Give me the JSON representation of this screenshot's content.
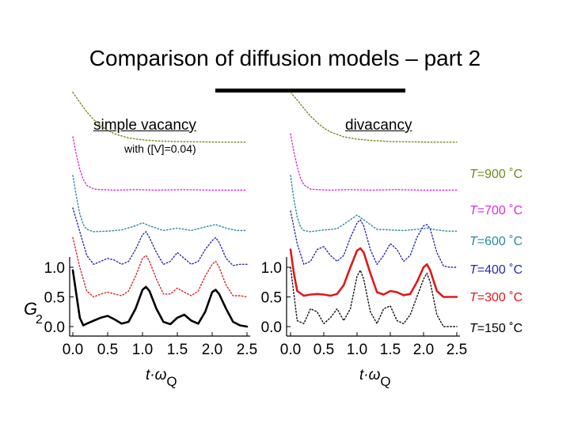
{
  "slide": {
    "title": "Comparison of diffusion models – part 2"
  },
  "chart_data": [
    {
      "type": "line",
      "panel": "left",
      "title": "simple vacancy",
      "subtitle": "with ([V]=0.04)",
      "xlabel": "t·ωQ",
      "ylabel": "G2",
      "xlim": [
        0.0,
        2.5
      ],
      "ylim": [
        0.0,
        1.0
      ],
      "x_ticks": [
        "0.0",
        "0.5",
        "1.0",
        "1.5",
        "2.0",
        "2.5"
      ],
      "y_ticks": [
        "0.0",
        "0.5",
        "1.0"
      ],
      "grid": false,
      "series": [
        {
          "name": "T=900 ˚C",
          "color": "#6e8b1e",
          "style": "dotted",
          "offset": 3.1,
          "x": [
            0.0,
            0.1,
            0.2,
            0.3,
            0.4,
            0.5,
            0.6,
            0.8,
            1.0,
            1.2,
            1.5,
            1.8,
            2.1,
            2.5
          ],
          "y": [
            0.85,
            0.68,
            0.52,
            0.39,
            0.29,
            0.21,
            0.15,
            0.08,
            0.05,
            0.03,
            0.02,
            0.015,
            0.01,
            0.01
          ]
        },
        {
          "name": "T=700 ˚C",
          "color": "#d92fd9",
          "style": "dotted",
          "offset": 2.3,
          "x": [
            0.0,
            0.05,
            0.1,
            0.15,
            0.2,
            0.3,
            0.4,
            0.6,
            0.9,
            1.2,
            1.6,
            2.0,
            2.5
          ],
          "y": [
            0.9,
            0.6,
            0.35,
            0.18,
            0.08,
            0.02,
            0.01,
            0.0,
            0.01,
            0.0,
            0.01,
            0.0,
            0.0
          ]
        },
        {
          "name": "T=600 ˚C",
          "color": "#2b8a9e",
          "style": "dotted",
          "offset": 1.6,
          "x": [
            0.0,
            0.05,
            0.1,
            0.15,
            0.2,
            0.3,
            0.5,
            0.7,
            0.9,
            1.0,
            1.1,
            1.3,
            1.5,
            1.7,
            1.9,
            2.05,
            2.2,
            2.35,
            2.5
          ],
          "y": [
            0.95,
            0.6,
            0.3,
            0.12,
            0.04,
            0.0,
            0.01,
            0.03,
            0.1,
            0.15,
            0.1,
            0.02,
            0.06,
            0.02,
            0.08,
            0.12,
            0.06,
            0.02,
            0.02
          ]
        },
        {
          "name": "T=400 ˚C",
          "color": "#2a2ab0",
          "style": "dotted",
          "offset": 1.0,
          "x": [
            0.0,
            0.1,
            0.2,
            0.3,
            0.4,
            0.5,
            0.6,
            0.7,
            0.8,
            0.9,
            1.0,
            1.05,
            1.1,
            1.2,
            1.3,
            1.4,
            1.5,
            1.6,
            1.7,
            1.8,
            1.9,
            2.0,
            2.05,
            2.1,
            2.2,
            2.3,
            2.4,
            2.5
          ],
          "y": [
            1.0,
            0.6,
            0.2,
            0.05,
            0.1,
            0.15,
            0.12,
            0.05,
            0.1,
            0.3,
            0.55,
            0.6,
            0.5,
            0.25,
            0.05,
            0.1,
            0.25,
            0.15,
            0.05,
            0.1,
            0.3,
            0.45,
            0.5,
            0.42,
            0.15,
            0.03,
            0.05,
            0.05
          ]
        },
        {
          "name": "T=300 ˚C",
          "color": "#d92424",
          "style": "dotted",
          "offset": 0.5,
          "x": [
            0.0,
            0.1,
            0.2,
            0.3,
            0.4,
            0.5,
            0.6,
            0.7,
            0.8,
            0.9,
            1.0,
            1.05,
            1.1,
            1.2,
            1.3,
            1.4,
            1.5,
            1.6,
            1.7,
            1.8,
            1.9,
            2.0,
            2.05,
            2.1,
            2.2,
            2.3,
            2.4,
            2.5
          ],
          "y": [
            1.0,
            0.5,
            0.1,
            0.0,
            0.05,
            0.08,
            0.05,
            0.02,
            0.1,
            0.35,
            0.65,
            0.7,
            0.6,
            0.3,
            0.05,
            0.05,
            0.15,
            0.08,
            0.02,
            0.1,
            0.35,
            0.55,
            0.6,
            0.5,
            0.2,
            0.02,
            0.02,
            0.0
          ]
        },
        {
          "name": "T=150 ˚C",
          "color": "#000000",
          "style": "solid",
          "offset": 0.0,
          "x": [
            0.0,
            0.05,
            0.1,
            0.15,
            0.2,
            0.3,
            0.4,
            0.5,
            0.6,
            0.7,
            0.8,
            0.9,
            1.0,
            1.05,
            1.1,
            1.2,
            1.3,
            1.4,
            1.5,
            1.6,
            1.7,
            1.8,
            1.9,
            2.0,
            2.05,
            2.1,
            2.2,
            2.3,
            2.4,
            2.5
          ],
          "y": [
            0.95,
            0.55,
            0.15,
            0.02,
            0.05,
            0.1,
            0.15,
            0.18,
            0.12,
            0.05,
            0.08,
            0.3,
            0.62,
            0.67,
            0.6,
            0.3,
            0.08,
            0.04,
            0.15,
            0.2,
            0.1,
            0.05,
            0.25,
            0.58,
            0.62,
            0.55,
            0.3,
            0.08,
            0.02,
            0.0
          ]
        }
      ]
    },
    {
      "type": "line",
      "panel": "right",
      "title": "divacancy",
      "xlabel": "t·ωQ",
      "xlim": [
        0.0,
        2.5
      ],
      "ylim": [
        0.0,
        1.0
      ],
      "x_ticks": [
        "0.0",
        "0.5",
        "1.0",
        "1.5",
        "2.0",
        "2.5"
      ],
      "y_ticks": [
        "0.0",
        "0.5",
        "1.0"
      ],
      "grid": false,
      "series": [
        {
          "name": "T=900 ˚C",
          "color": "#6e8b1e",
          "style": "dotted",
          "offset": 3.1,
          "x": [
            0.0,
            0.1,
            0.2,
            0.3,
            0.4,
            0.5,
            0.6,
            0.8,
            1.0,
            1.2,
            1.5,
            1.8,
            2.1,
            2.5
          ],
          "y": [
            0.85,
            0.72,
            0.58,
            0.45,
            0.34,
            0.25,
            0.18,
            0.1,
            0.06,
            0.04,
            0.02,
            0.015,
            0.01,
            0.01
          ]
        },
        {
          "name": "T=700 ˚C",
          "color": "#d92fd9",
          "style": "dotted",
          "offset": 2.3,
          "x": [
            0.0,
            0.05,
            0.1,
            0.15,
            0.2,
            0.3,
            0.4,
            0.6,
            0.9,
            1.2,
            1.6,
            2.0,
            2.5
          ],
          "y": [
            0.95,
            0.65,
            0.4,
            0.2,
            0.09,
            0.02,
            0.01,
            0.0,
            0.01,
            0.0,
            0.01,
            0.0,
            0.0
          ]
        },
        {
          "name": "T=600 ˚C",
          "color": "#2b8a9e",
          "style": "dotted",
          "offset": 1.6,
          "x": [
            0.0,
            0.05,
            0.1,
            0.15,
            0.2,
            0.3,
            0.5,
            0.7,
            0.9,
            1.0,
            1.1,
            1.3,
            1.5,
            1.7,
            1.9,
            2.05,
            2.2,
            2.35,
            2.5
          ],
          "y": [
            0.95,
            0.55,
            0.25,
            0.08,
            0.02,
            0.0,
            0.03,
            0.05,
            0.2,
            0.28,
            0.2,
            0.04,
            0.03,
            0.02,
            0.04,
            0.06,
            0.03,
            0.01,
            0.01
          ]
        },
        {
          "name": "T=400 ˚C",
          "color": "#2a2ab0",
          "style": "dotted",
          "offset": 1.0,
          "x": [
            0.0,
            0.1,
            0.2,
            0.3,
            0.4,
            0.5,
            0.6,
            0.7,
            0.8,
            0.9,
            1.0,
            1.05,
            1.1,
            1.2,
            1.3,
            1.4,
            1.5,
            1.6,
            1.7,
            1.8,
            1.9,
            2.0,
            2.05,
            2.1,
            2.2,
            2.3,
            2.4,
            2.5
          ],
          "y": [
            0.95,
            0.4,
            0.05,
            0.1,
            0.3,
            0.35,
            0.2,
            0.1,
            0.2,
            0.5,
            0.75,
            0.8,
            0.7,
            0.3,
            0.05,
            0.2,
            0.4,
            0.3,
            0.1,
            0.2,
            0.5,
            0.7,
            0.72,
            0.65,
            0.25,
            0.02,
            0.0,
            0.0
          ]
        },
        {
          "name": "T=300 ˚C",
          "color": "#dd1a1a",
          "style": "solid",
          "offset": 0.5,
          "x": [
            0.0,
            0.05,
            0.1,
            0.2,
            0.3,
            0.4,
            0.5,
            0.6,
            0.7,
            0.8,
            0.9,
            1.0,
            1.05,
            1.1,
            1.2,
            1.3,
            1.4,
            1.5,
            1.6,
            1.7,
            1.8,
            1.9,
            2.0,
            2.05,
            2.1,
            2.2,
            2.3,
            2.4,
            2.5
          ],
          "y": [
            0.8,
            0.4,
            0.1,
            0.02,
            0.04,
            0.05,
            0.04,
            0.02,
            0.05,
            0.2,
            0.5,
            0.78,
            0.82,
            0.75,
            0.4,
            0.08,
            0.04,
            0.1,
            0.08,
            0.03,
            0.05,
            0.25,
            0.5,
            0.55,
            0.45,
            0.1,
            0.0,
            0.0,
            0.0
          ]
        },
        {
          "name": "T=150 ˚C",
          "color": "#111111",
          "style": "dotted",
          "offset": 0.0,
          "x": [
            0.0,
            0.1,
            0.2,
            0.3,
            0.4,
            0.5,
            0.6,
            0.7,
            0.8,
            0.9,
            1.0,
            1.05,
            1.1,
            1.2,
            1.3,
            1.4,
            1.5,
            1.6,
            1.7,
            1.8,
            1.9,
            2.0,
            2.05,
            2.1,
            2.2,
            2.3,
            2.4,
            2.5
          ],
          "y": [
            1.0,
            0.1,
            0.05,
            0.3,
            0.25,
            0.05,
            0.15,
            0.3,
            0.1,
            0.3,
            0.85,
            0.95,
            0.8,
            0.25,
            0.05,
            0.3,
            0.35,
            0.1,
            0.05,
            0.2,
            0.5,
            0.8,
            0.9,
            0.75,
            0.2,
            0.0,
            0.0,
            0.0
          ]
        }
      ]
    }
  ],
  "legend": {
    "series_labels": [
      {
        "prefix": "T",
        "value": "=900 ˚C",
        "color": "#6e8b1e"
      },
      {
        "prefix": "T",
        "value": "=700 ˚C",
        "color": "#d92fd9"
      },
      {
        "prefix": "T",
        "value": "=600 ˚C",
        "color": "#2b8a9e"
      },
      {
        "prefix": "T",
        "value": "=400 ˚C",
        "color": "#2a2ab0"
      },
      {
        "prefix": "T",
        "value": "=300 ˚C",
        "color": "#dd1a1a"
      },
      {
        "prefix": "T",
        "value": "=150 ˚C",
        "color": "#000000"
      }
    ]
  },
  "axis_text": {
    "left_ylabel_main": "G",
    "left_ylabel_sub": "2",
    "xlabel_main": "t·ω",
    "xlabel_sub": "Q"
  }
}
